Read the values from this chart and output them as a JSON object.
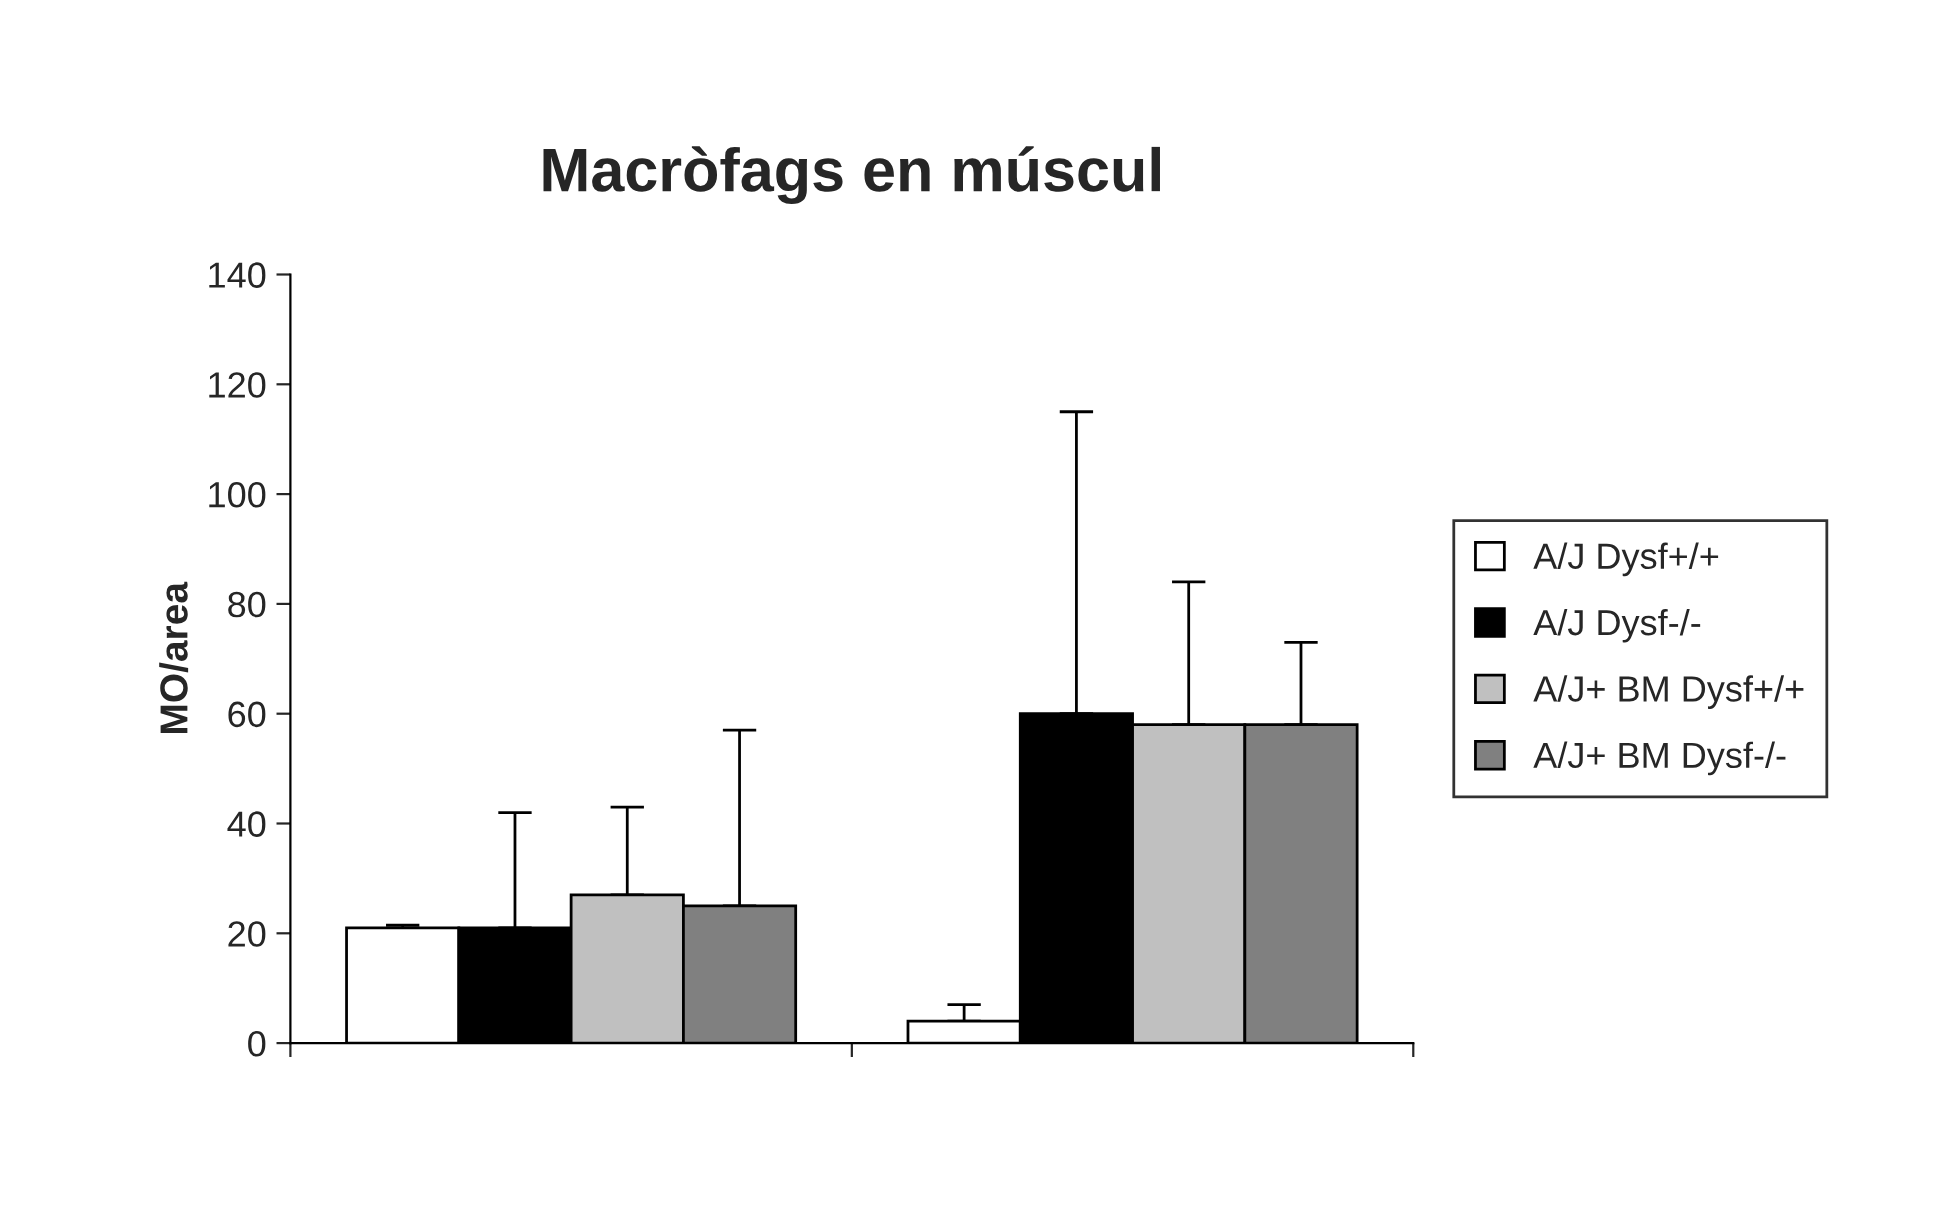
{
  "chart_data": {
    "type": "bar",
    "title": "Macròfags en múscul",
    "ylabel": "MO/area",
    "categories": [
      null,
      null
    ],
    "series": [
      {
        "name": "A/J Dysf+/+",
        "color": "#ffffff",
        "values": [
          21,
          4
        ],
        "errors": [
          [
            21,
            21.5
          ],
          [
            4,
            7
          ]
        ]
      },
      {
        "name": "A/J Dysf-/-",
        "color": "#000000",
        "values": [
          21,
          60
        ],
        "errors": [
          [
            21,
            42
          ],
          [
            60,
            115
          ]
        ]
      },
      {
        "name": "A/J+ BM Dysf+/+",
        "color": "#c0c0c0",
        "values": [
          27,
          58
        ],
        "errors": [
          [
            27,
            43
          ],
          [
            58,
            84
          ]
        ]
      },
      {
        "name": "A/J+ BM Dysf-/-",
        "color": "#808080",
        "values": [
          25,
          58
        ],
        "errors": [
          [
            25,
            57
          ],
          [
            58,
            73
          ]
        ]
      }
    ],
    "ylim": [
      0,
      140
    ],
    "yticks": [
      0,
      20,
      40,
      60,
      80,
      100,
      120,
      140
    ],
    "grid": false,
    "legend": "right"
  }
}
